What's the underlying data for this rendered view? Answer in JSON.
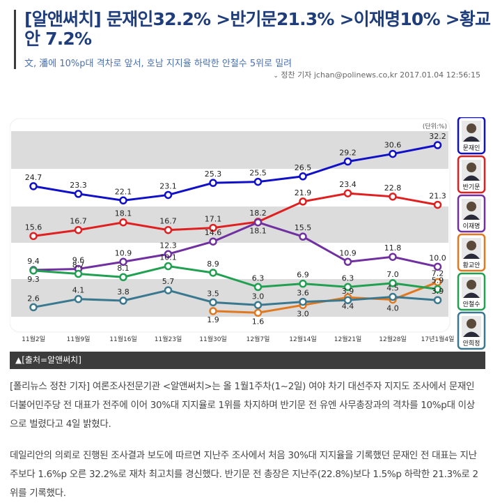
{
  "article": {
    "headline": "[알앤써치] 문재인32.2% >반기문21.3% >이재명10% >황교안 7.2%",
    "subhead": "文, 潘에 10%p대 격차로 앞서, 호남 지지율 하락한 안철수 5위로 밀려",
    "byline": "정찬 기자  jchan@polinews.co,kr  2017.01.04 12:56:15",
    "byline_arrow": "⌄",
    "caption": "▲[출처=알앤써치]",
    "paragraphs": [
      "[폴리뉴스 정찬 기자] 여론조사전문기관 <알앤써치>는 올 1월1주차(1~2일) 여야 차기 대선주자 지지도 조사에서 문재인 더불어민주당 전 대표가 전주에 이어 30%대 지지율로 1위를 차지하며 반기문 전 유엔 사무총장과의 격차를 10%p대 이상으로 벌렸다고 4일 밝혔다.",
      "데일리안의 의뢰로 진행된 조사결과 보도에 따르면 지난주 조사에서 처음 30%대 지지율을 기록했던 문재인 전 대표는 지난주보다 1.6%p 오른 32.2%로 재차 최고치를 경신했다. 반기문 전 총장은 지난주(22.8%)보다 1.5%p 하락한 21.3%로 2위를 기록했다."
    ]
  },
  "chart_data": {
    "type": "line",
    "unit_label": "(단위:%)",
    "categories": [
      "11월2일",
      "11월9일",
      "11월16일",
      "11월23일",
      "11월30일",
      "12월7일",
      "12월14일",
      "12월21일",
      "12월28일",
      "17년1월4일"
    ],
    "ylim": [
      0,
      35
    ],
    "series": [
      {
        "name": "문재인",
        "color": "#1010c8",
        "values": [
          24.7,
          23.3,
          22.1,
          23.1,
          25.3,
          25.5,
          26.5,
          29.2,
          30.6,
          32.2
        ],
        "labels": [
          "24.7",
          "23.3",
          "22.1",
          "23.1",
          "25.3",
          "25.5",
          "26.5",
          "29.2",
          "30.6",
          "32.2"
        ]
      },
      {
        "name": "반기문",
        "color": "#e02020",
        "values": [
          15.6,
          16.7,
          18.1,
          16.7,
          17.1,
          18.2,
          21.9,
          23.4,
          22.8,
          21.3
        ],
        "labels": [
          "15.6",
          "16.7",
          "18.1",
          "16.7",
          "17.1",
          "18.2",
          "21.9",
          "23.4",
          "22.8",
          "21.3"
        ]
      },
      {
        "name": "이재명",
        "color": "#7030a0",
        "values": [
          9.4,
          9.6,
          10.9,
          12.3,
          14.6,
          18.1,
          15.5,
          10.9,
          11.8,
          10.0
        ],
        "labels": [
          "9.4",
          "9.6",
          "10.9",
          "12.3",
          "14.6",
          "18.1",
          "15.5",
          "10.9",
          "11.8",
          "10.0"
        ]
      },
      {
        "name": "황교안",
        "color": "#e07820",
        "values": [
          null,
          null,
          null,
          null,
          1.9,
          1.6,
          3.0,
          4.4,
          4.0,
          7.2
        ],
        "labels": [
          "",
          "",
          "",
          "",
          "1.9",
          "1.6",
          "3.0",
          "4.4",
          "4.0",
          "7.2"
        ]
      },
      {
        "name": "안철수",
        "color": "#20a050",
        "values": [
          9.3,
          8.7,
          8.1,
          10.1,
          8.9,
          6.3,
          6.9,
          6.3,
          7.0,
          5.9
        ],
        "labels": [
          "9.3",
          "8.7",
          "8.1",
          "10.1",
          "8.9",
          "6.3",
          "6.9",
          "6.3",
          "7.0",
          "5.9"
        ]
      },
      {
        "name": "안희정",
        "color": "#3a7890",
        "values": [
          2.6,
          4.1,
          3.8,
          5.7,
          3.5,
          3.0,
          3.6,
          3.9,
          4.5,
          3.9
        ],
        "labels": [
          "2.6",
          "4.1",
          "3.8",
          "5.7",
          "3.5",
          "3.0",
          "3.6",
          "3.9",
          "4.5",
          "3.9"
        ]
      }
    ],
    "legend_placement": "right",
    "grid": "alternating bands"
  }
}
